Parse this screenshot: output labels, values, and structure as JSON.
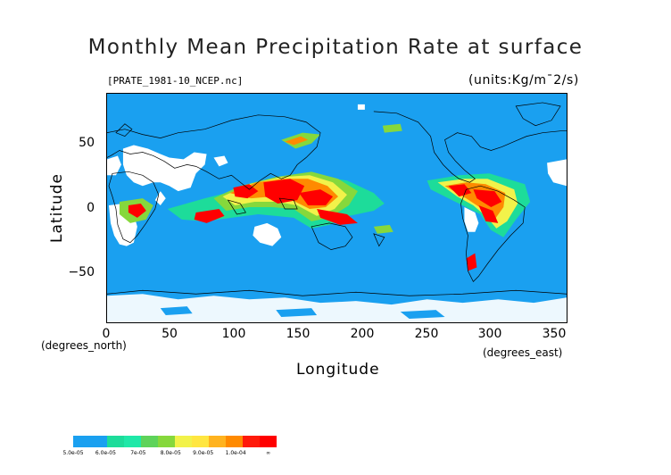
{
  "title": "Monthly Mean Precipitation Rate at surface",
  "file_label": "[PRATE_1981-10_NCEP.nc]",
  "units_label": "(units:Kg/m¯2/s)",
  "x_axis": {
    "label": "Longitude",
    "unit": "(degrees_east)",
    "ticks": [
      "0",
      "50",
      "100",
      "150",
      "200",
      "250",
      "300",
      "350"
    ],
    "range": [
      0,
      360
    ]
  },
  "y_axis": {
    "label": "Latitude",
    "unit": "(degrees_north)",
    "ticks": [
      "50",
      "0",
      "−50"
    ],
    "range": [
      -90,
      90
    ]
  },
  "colors": {
    "ocean_background": "#1aa0f0",
    "missing": "#ffffff",
    "coast": "#000000"
  },
  "colorbar": {
    "levels": [
      "5.0e-05",
      "6.0e-05",
      "7e-05",
      "8.0e-05",
      "9.0e-05",
      "1.0e-04",
      "∞"
    ],
    "swatches": [
      "#1aa0f0",
      "#1aa0f0",
      "#1ddc9a",
      "#1fe8a8",
      "#5ed35a",
      "#86d83c",
      "#f2f24a",
      "#ffe640",
      "#ffb31f",
      "#ff8a00",
      "#ff1a0a",
      "#ff0000"
    ]
  }
}
